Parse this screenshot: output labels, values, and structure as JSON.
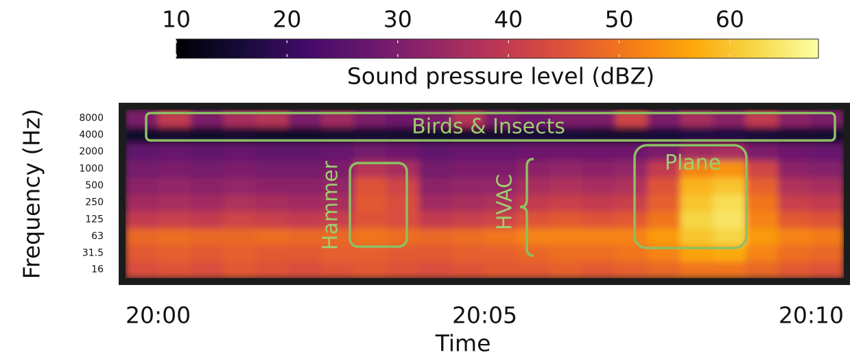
{
  "chart_data": {
    "type": "heatmap",
    "x_label": "Time",
    "y_label": "Frequency (Hz)",
    "x": [
      -0.25,
      0.25,
      0.75,
      1.25,
      1.75,
      2.25,
      2.75,
      3.25,
      3.75,
      4.25,
      4.75,
      5.25,
      5.75,
      6.25,
      6.75,
      7.25,
      7.75,
      8.25,
      8.75,
      9.25,
      9.75,
      10.25
    ],
    "y": [
      16,
      31.5,
      63,
      125,
      250,
      500,
      1000,
      2000,
      4000,
      8000
    ],
    "z": [
      [
        44,
        45,
        44,
        46,
        45,
        44,
        45,
        46,
        45,
        44,
        45,
        46,
        46,
        47,
        46,
        47,
        48,
        50,
        50,
        48,
        46,
        45
      ],
      [
        46,
        47,
        46,
        47,
        46,
        46,
        47,
        47,
        46,
        46,
        47,
        47,
        48,
        49,
        49,
        50,
        52,
        56,
        57,
        52,
        49,
        48
      ],
      [
        48,
        49,
        48,
        48,
        49,
        48,
        48,
        50,
        49,
        48,
        49,
        50,
        52,
        52,
        52,
        52,
        55,
        60,
        62,
        55,
        52,
        51
      ],
      [
        40,
        41,
        40,
        42,
        41,
        40,
        41,
        45,
        44,
        40,
        41,
        42,
        45,
        46,
        45,
        46,
        50,
        62,
        64,
        52,
        46,
        45
      ],
      [
        35,
        36,
        35,
        37,
        36,
        35,
        36,
        46,
        44,
        35,
        36,
        37,
        40,
        41,
        40,
        41,
        47,
        60,
        63,
        50,
        41,
        40
      ],
      [
        32,
        33,
        32,
        33,
        32,
        32,
        33,
        45,
        42,
        32,
        33,
        33,
        36,
        37,
        36,
        37,
        45,
        58,
        60,
        47,
        37,
        36
      ],
      [
        29,
        30,
        29,
        30,
        29,
        29,
        30,
        38,
        36,
        29,
        30,
        30,
        32,
        33,
        32,
        33,
        40,
        52,
        54,
        42,
        32,
        31
      ],
      [
        26,
        27,
        26,
        27,
        26,
        26,
        27,
        29,
        28,
        26,
        27,
        27,
        28,
        28,
        28,
        28,
        30,
        35,
        36,
        30,
        28,
        27
      ],
      [
        14,
        15,
        14,
        15,
        14,
        14,
        15,
        15,
        15,
        14,
        15,
        15,
        16,
        16,
        15,
        15,
        16,
        17,
        17,
        16,
        15,
        15
      ],
      [
        30,
        40,
        30,
        36,
        38,
        30,
        35,
        30,
        28,
        30,
        38,
        30,
        28,
        30,
        30,
        42,
        30,
        36,
        32,
        40,
        32,
        30
      ]
    ],
    "xlim": [
      -0.5,
      10.5
    ],
    "xticks": [
      {
        "value": 0,
        "label": "20:00"
      },
      {
        "value": 5,
        "label": "20:05"
      },
      {
        "value": 10,
        "label": "20:10"
      }
    ],
    "ylim": [
      11.3,
      11300
    ],
    "yticks": [
      16,
      31.5,
      63,
      125,
      250,
      500,
      1000,
      2000,
      4000,
      8000
    ],
    "y_scale": "log",
    "colormap": "inferno",
    "colorbar": {
      "label": "Sound pressure level (dBZ)",
      "lim": [
        10,
        68
      ],
      "ticks": [
        10,
        20,
        30,
        40,
        50,
        60
      ]
    },
    "annotations": [
      "Birds & Insects",
      "Hammer",
      "HVAC",
      "Plane"
    ]
  }
}
